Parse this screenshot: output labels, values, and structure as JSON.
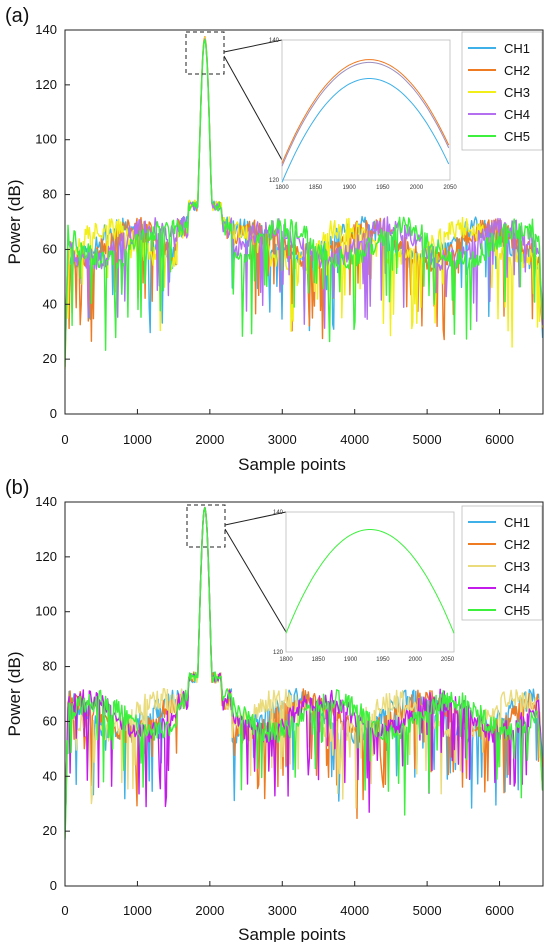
{
  "chart_data": [
    {
      "panel_label": "(a)",
      "type": "line",
      "xlabel": "Sample points",
      "ylabel": "Power (dB)",
      "xlim": [
        0,
        6600
      ],
      "ylim": [
        0,
        140
      ],
      "xticks": [
        "0",
        "1000",
        "2000",
        "3000",
        "4000",
        "5000",
        "6000"
      ],
      "yticks": [
        "0",
        "20",
        "40",
        "60",
        "80",
        "100",
        "120",
        "140"
      ],
      "peak_x": 1930,
      "peak_value": 137,
      "noise_floor_mean": 62,
      "legend_placement": "top-right",
      "series": [
        {
          "name": "CH1",
          "color": "#3fb1e8",
          "peak": 137.0,
          "seed": 11
        },
        {
          "name": "CH2",
          "color": "#ee7a22",
          "peak": 137.6,
          "seed": 23
        },
        {
          "name": "CH3",
          "color": "#f2ee1a",
          "peak": 137.3,
          "seed": 37
        },
        {
          "name": "CH4",
          "color": "#b36ff0",
          "peak": 136.8,
          "seed": 41
        },
        {
          "name": "CH5",
          "color": "#3df03d",
          "peak": 136.5,
          "seed": 59
        }
      ],
      "inset": {
        "xlim": [
          1800,
          2050
        ],
        "ylim": [
          120,
          140
        ],
        "xticks": [
          "1800",
          "1850",
          "1900",
          "1950",
          "2000",
          "2050"
        ],
        "yticks": [
          "120",
          "140"
        ],
        "curves": [
          {
            "color": "#ee7a22",
            "peak": 137.2
          },
          {
            "color": "#9c8fbf",
            "peak": 136.8
          },
          {
            "color": "#3fb1e8",
            "peak": 134.5
          }
        ],
        "curve_center": 1930
      }
    },
    {
      "panel_label": "(b)",
      "type": "line",
      "xlabel": "Sample points",
      "ylabel": "Power (dB)",
      "xlim": [
        0,
        6600
      ],
      "ylim": [
        0,
        140
      ],
      "xticks": [
        "0",
        "1000",
        "2000",
        "3000",
        "4000",
        "5000",
        "6000"
      ],
      "yticks": [
        "0",
        "20",
        "40",
        "60",
        "80",
        "100",
        "120",
        "140"
      ],
      "peak_x": 1930,
      "peak_value": 138,
      "noise_floor_mean": 62,
      "legend_placement": "top-right",
      "series": [
        {
          "name": "CH1",
          "color": "#3fb1e8",
          "peak": 138.0,
          "seed": 71
        },
        {
          "name": "CH2",
          "color": "#ee7a22",
          "peak": 138.0,
          "seed": 83
        },
        {
          "name": "CH3",
          "color": "#eadc7c",
          "peak": 138.0,
          "seed": 97
        },
        {
          "name": "CH4",
          "color": "#c21bea",
          "peak": 138.0,
          "seed": 101
        },
        {
          "name": "CH5",
          "color": "#3df03d",
          "peak": 138.0,
          "seed": 113
        }
      ],
      "inset": {
        "xlim": [
          1800,
          2060
        ],
        "ylim": [
          120,
          140
        ],
        "xticks": [
          "1800",
          "1850",
          "1900",
          "1950",
          "2000",
          "2050"
        ],
        "yticks": [
          "120",
          "140"
        ],
        "curves": [
          {
            "color": "#3df03d",
            "peak": 137.5
          }
        ],
        "curve_center": 1930
      }
    }
  ]
}
